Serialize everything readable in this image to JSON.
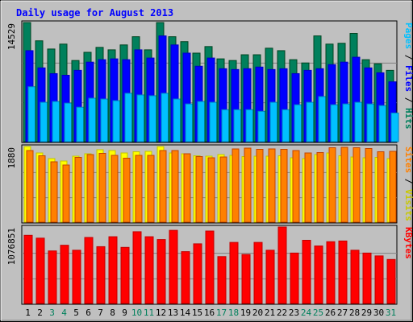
{
  "colors": {
    "frame_bg": "#c0c0c0",
    "plot_bg": "#c0c0c0",
    "title": "#0000ff",
    "hits": "#00805c",
    "files": "#0000ff",
    "pages": "#00c0ff",
    "visits": "#ffff00",
    "sites": "#ff8000",
    "kbytes": "#ff0000",
    "weekend_label": "#00805c",
    "weekday_label": "#000000"
  },
  "chart_data": [
    {
      "type": "bar",
      "title": "Daily usage for August 2013",
      "panel": "hits-files-pages",
      "y_axis_label": "14529",
      "side_label": {
        "pages": "Pages",
        "sep1": " / ",
        "files": "Files",
        "sep2": " / ",
        "hits": "Hits"
      },
      "categories": [
        "1",
        "2",
        "3",
        "4",
        "5",
        "6",
        "7",
        "8",
        "9",
        "10",
        "11",
        "12",
        "13",
        "14",
        "15",
        "16",
        "17",
        "18",
        "19",
        "20",
        "21",
        "22",
        "23",
        "24",
        "25",
        "26",
        "27",
        "28",
        "29",
        "30",
        "31"
      ],
      "weekend_days": [
        "3",
        "4",
        "10",
        "11",
        "17",
        "18",
        "24",
        "25",
        "31"
      ],
      "ylim": [
        0,
        14529
      ],
      "series": [
        {
          "name": "Hits",
          "values": [
            14529,
            12300,
            11300,
            11900,
            9900,
            10900,
            11500,
            11200,
            11800,
            12800,
            11200,
            14529,
            12800,
            12200,
            10800,
            11600,
            10100,
            9900,
            10600,
            10600,
            11400,
            11100,
            10000,
            9600,
            12900,
            11900,
            12000,
            13200,
            10000,
            9500,
            8700
          ]
        },
        {
          "name": "Files",
          "values": [
            11100,
            9000,
            8300,
            8100,
            8700,
            9700,
            10000,
            10100,
            10000,
            11200,
            10200,
            12900,
            11800,
            10800,
            9200,
            10200,
            8900,
            8800,
            8900,
            9100,
            8800,
            8900,
            8300,
            8700,
            8900,
            9400,
            9700,
            10300,
            9000,
            8400,
            7300
          ]
        },
        {
          "name": "Pages",
          "values": [
            6700,
            4800,
            4900,
            4700,
            4200,
            5300,
            5200,
            5000,
            5900,
            5700,
            5600,
            5900,
            5200,
            4600,
            4900,
            4800,
            3900,
            3900,
            3900,
            3700,
            4800,
            3900,
            4500,
            4800,
            5500,
            4500,
            4600,
            4800,
            4600,
            4400,
            3500
          ]
        }
      ]
    },
    {
      "type": "bar",
      "panel": "sites-visits",
      "y_axis_label": "1880",
      "side_label": {
        "sites": "Sites",
        "sep1": " / ",
        "visits": "Visits"
      },
      "ylim": [
        0,
        1880
      ],
      "series": [
        {
          "name": "Visits",
          "values": [
            1880,
            1720,
            1580,
            1520,
            1640,
            1700,
            1800,
            1780,
            1720,
            1750,
            1760,
            1880,
            1720,
            1700,
            1650,
            1640,
            1680,
            1660,
            1630,
            1640,
            1640,
            1650,
            1600,
            1580,
            1680,
            1720,
            1650,
            1620,
            1600,
            1610,
            1580
          ]
        },
        {
          "name": "Sites",
          "values": [
            1780,
            1650,
            1500,
            1420,
            1610,
            1680,
            1710,
            1660,
            1590,
            1660,
            1660,
            1780,
            1780,
            1700,
            1630,
            1600,
            1620,
            1820,
            1840,
            1810,
            1820,
            1810,
            1780,
            1720,
            1730,
            1850,
            1860,
            1850,
            1830,
            1750,
            1760
          ]
        }
      ]
    },
    {
      "type": "bar",
      "panel": "kbytes",
      "y_axis_label": "1076851",
      "side_label": {
        "kbytes": "KBytes"
      },
      "ylim": [
        0,
        1076851
      ],
      "series": [
        {
          "name": "KBytes",
          "values": [
            960000,
            920000,
            740000,
            820000,
            750000,
            930000,
            800000,
            940000,
            790000,
            1010000,
            940000,
            900000,
            1030000,
            730000,
            840000,
            1020000,
            660000,
            860000,
            690000,
            860000,
            750000,
            1076851,
            710000,
            890000,
            810000,
            870000,
            880000,
            750000,
            710000,
            670000,
            620000
          ]
        }
      ]
    }
  ]
}
